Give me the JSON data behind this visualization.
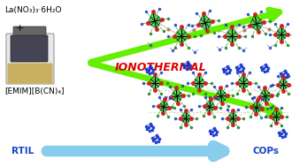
{
  "background_color": "#ffffff",
  "left_label_line1": "La(NO₃)₃·6H₂O",
  "left_label_plus": "+",
  "left_label_line2": "[EMIM][B(CN)₄]",
  "bottom_left_label": "RTIL",
  "bottom_right_label": "COPs",
  "center_label": "IONOTHERMAL",
  "arrow_color_green": "#66ee00",
  "arrow_color_blue": "#88ccee",
  "center_label_color": "#dd0000",
  "bottom_label_color": "#1144cc",
  "left_text_color": "#000000",
  "fig_width": 3.3,
  "fig_height": 1.89,
  "dpi": 100,
  "poly_fill": "#44cc44",
  "poly_edge": "#115511",
  "red_dot": "#cc2222",
  "blue_dot": "#2244cc",
  "dark_green_line": "#226622",
  "connector_color": "#aaaaaa"
}
